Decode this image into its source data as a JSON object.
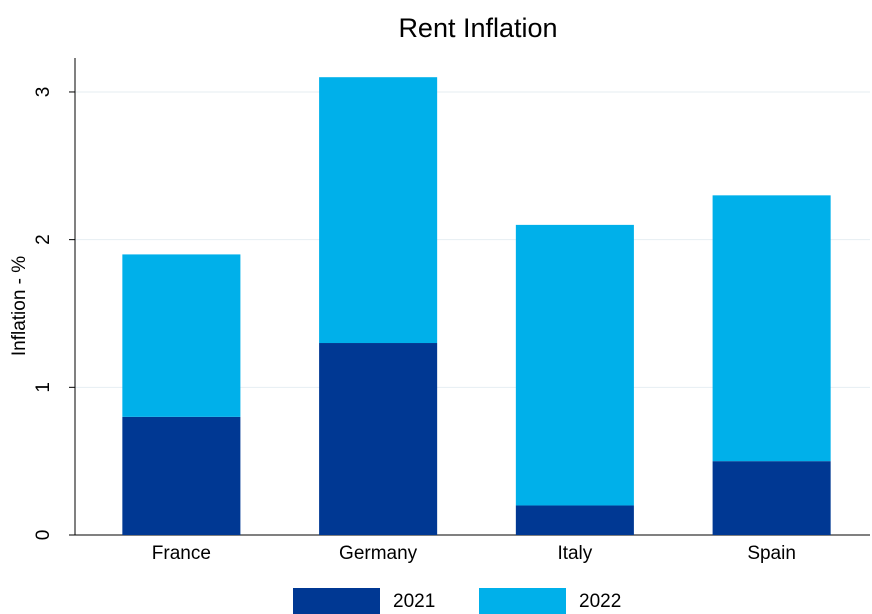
{
  "chart_data": {
    "type": "stacked_bar",
    "title": "Rent Inflation",
    "y_label": "Inflation - %",
    "categories": [
      "France",
      "Germany",
      "Italy",
      "Spain"
    ],
    "series": [
      {
        "name": "2021",
        "color": "#003893",
        "values": [
          0.8,
          1.3,
          0.2,
          0.5
        ]
      },
      {
        "name": "2022",
        "color": "#00b0ea",
        "values": [
          1.1,
          1.8,
          1.9,
          1.8
        ]
      }
    ],
    "ylim": [
      0,
      3.23
    ],
    "yticks": [
      0,
      1,
      2,
      3
    ],
    "grid": true
  }
}
